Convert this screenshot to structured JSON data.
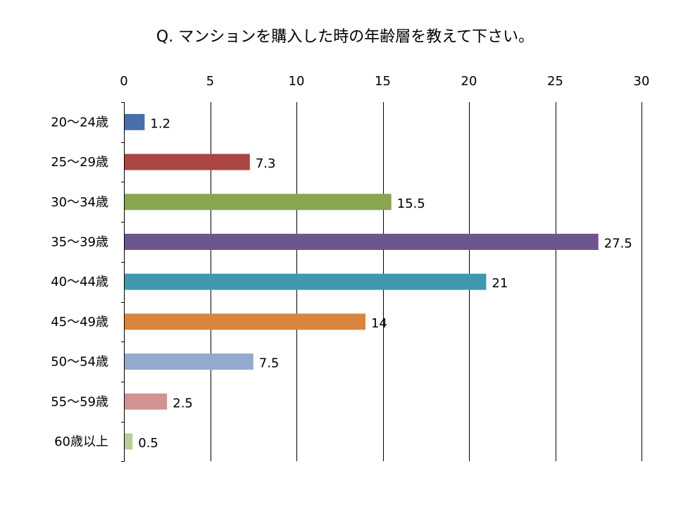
{
  "chart_data": {
    "type": "bar",
    "orientation": "horizontal",
    "title": "Q. マンションを購入した時の年齢層を教えて下さい。",
    "xlabel": "",
    "ylabel": "",
    "xlim": [
      0,
      30
    ],
    "x_ticks": [
      "0",
      "5",
      "10",
      "15",
      "20",
      "25",
      "30"
    ],
    "x_axis_position": "top",
    "grid": true,
    "legend": "none",
    "categories": [
      "20〜24歳",
      "25〜29歳",
      "30〜34歳",
      "35〜39歳",
      "40〜44歳",
      "45〜49歳",
      "50〜54歳",
      "55〜59歳",
      "60歳以上"
    ],
    "values": [
      1.2,
      7.3,
      15.5,
      27.5,
      21,
      14,
      7.5,
      2.5,
      0.5
    ],
    "value_labels": [
      "1.2",
      "7.3",
      "15.5",
      "27.5",
      "21",
      "14",
      "7.5",
      "2.5",
      "0.5"
    ],
    "colors": [
      "#4670a8",
      "#aa4644",
      "#89a54e",
      "#6f558f",
      "#4198ae",
      "#db843d",
      "#93a9cf",
      "#d19392",
      "#b9cd96"
    ]
  }
}
